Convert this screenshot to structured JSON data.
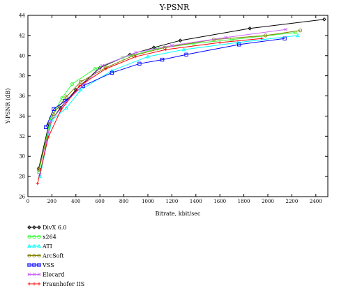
{
  "chart_data": {
    "type": "line",
    "title": "Y-PSNR",
    "xlabel": "Bitrate, kbit/sec",
    "ylabel": "Y-PSNR (dB)",
    "xlim": [
      0,
      2500
    ],
    "ylim": [
      26,
      44
    ],
    "xticks": [
      0,
      200,
      400,
      600,
      800,
      1000,
      1200,
      1400,
      1600,
      1800,
      2000,
      2200,
      2400
    ],
    "yticks": [
      26,
      28,
      30,
      32,
      34,
      36,
      38,
      40,
      42,
      44
    ],
    "xtick_labels": [
      "0",
      "200",
      "400",
      "600",
      "800",
      "1000",
      "1200",
      "1400",
      "1600",
      "1800",
      "2000",
      "2200",
      "2400"
    ],
    "ytick_labels": [
      "26",
      "28",
      "30",
      "32",
      "34",
      "36",
      "38",
      "40",
      "42",
      "44"
    ],
    "legend_position": "bottom-left",
    "series": [
      {
        "name": "DivX 6.0",
        "color": "#000000",
        "marker": "diamond",
        "points": [
          [
            90,
            28.8
          ],
          [
            175,
            33.2
          ],
          [
            270,
            34.8
          ],
          [
            400,
            36.6
          ],
          [
            600,
            38.8
          ],
          [
            850,
            40.1
          ],
          [
            1050,
            40.8
          ],
          [
            1270,
            41.5
          ],
          [
            1850,
            42.7
          ],
          [
            2470,
            43.6
          ]
        ]
      },
      {
        "name": "x264",
        "color": "#33ff33",
        "marker": "circle",
        "points": [
          [
            90,
            28.4
          ],
          [
            190,
            33.8
          ],
          [
            285,
            35.8
          ],
          [
            370,
            37.2
          ],
          [
            560,
            38.7
          ],
          [
            790,
            39.8
          ],
          [
            1080,
            40.7
          ],
          [
            1380,
            41.2
          ],
          [
            1700,
            41.6
          ],
          [
            2230,
            42.3
          ]
        ]
      },
      {
        "name": "ATI",
        "color": "#00ffff",
        "marker": "triangle",
        "points": [
          [
            100,
            28.0
          ],
          [
            200,
            33.6
          ],
          [
            320,
            34.8
          ],
          [
            440,
            36.6
          ],
          [
            700,
            38.5
          ],
          [
            1000,
            39.9
          ],
          [
            1300,
            40.6
          ],
          [
            1750,
            41.3
          ],
          [
            2250,
            42.0
          ]
        ]
      },
      {
        "name": "ArcSoft",
        "color": "#808000",
        "marker": "circle",
        "points": [
          [
            90,
            28.7
          ],
          [
            210,
            34.2
          ],
          [
            320,
            35.9
          ],
          [
            440,
            37.4
          ],
          [
            650,
            38.8
          ],
          [
            880,
            40.0
          ],
          [
            1140,
            40.8
          ],
          [
            1550,
            41.6
          ],
          [
            1980,
            42.0
          ],
          [
            2270,
            42.5
          ]
        ]
      },
      {
        "name": "VSS",
        "color": "#0000ff",
        "marker": "square",
        "points": [
          [
            150,
            32.9
          ],
          [
            215,
            34.7
          ],
          [
            310,
            35.5
          ],
          [
            460,
            37.0
          ],
          [
            700,
            38.3
          ],
          [
            930,
            39.2
          ],
          [
            1120,
            39.6
          ],
          [
            1320,
            40.1
          ],
          [
            1760,
            41.1
          ],
          [
            2140,
            41.7
          ]
        ]
      },
      {
        "name": "Elecard",
        "color": "#cc66ff",
        "marker": "x",
        "points": [
          [
            100,
            28.2
          ],
          [
            190,
            33.5
          ],
          [
            310,
            35.3
          ],
          [
            480,
            37.3
          ],
          [
            620,
            39.0
          ],
          [
            900,
            40.3
          ],
          [
            1200,
            41.0
          ],
          [
            1650,
            41.8
          ],
          [
            2150,
            42.6
          ]
        ]
      },
      {
        "name": "Fraunhofer IIS",
        "color": "#ff0000",
        "marker": "plus",
        "points": [
          [
            80,
            27.3
          ],
          [
            170,
            31.9
          ],
          [
            275,
            34.6
          ],
          [
            430,
            37.0
          ],
          [
            650,
            38.7
          ],
          [
            900,
            39.9
          ],
          [
            1150,
            40.6
          ],
          [
            1600,
            41.3
          ],
          [
            1950,
            41.7
          ]
        ]
      }
    ]
  }
}
